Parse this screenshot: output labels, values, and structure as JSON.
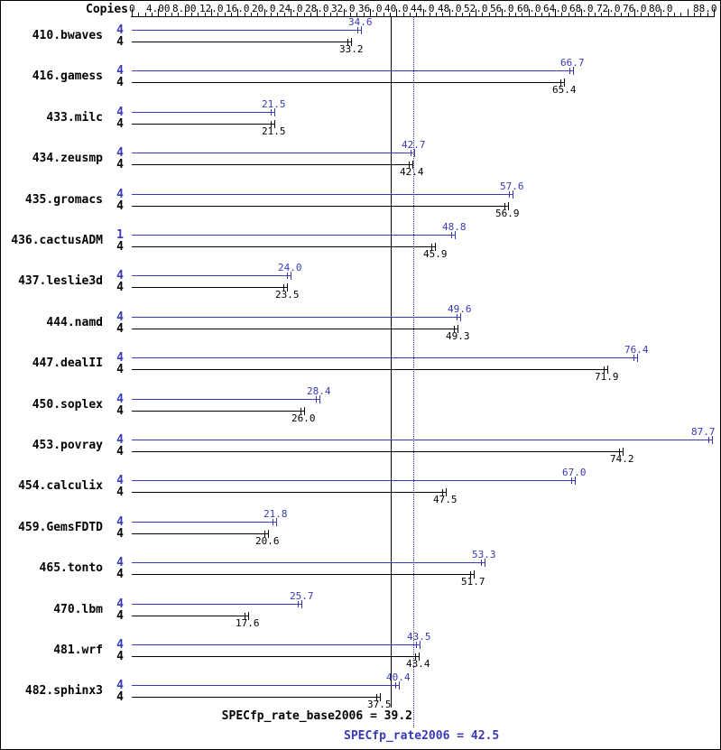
{
  "chart_data": {
    "type": "bar",
    "orientation": "horizontal",
    "copies_header": "Copies",
    "peak_color": "#3838b8",
    "base_color": "#000000",
    "axis": {
      "min": 0,
      "max": 88,
      "minor_step": 1,
      "major_step": 4,
      "position": "top",
      "tick_labels": [
        {
          "value": 0,
          "text": "0"
        },
        {
          "value": 4,
          "text": "4.00"
        },
        {
          "value": 8,
          "text": "8.00"
        },
        {
          "value": 12,
          "text": "12.0"
        },
        {
          "value": 16,
          "text": "16.0"
        },
        {
          "value": 20,
          "text": "20.0"
        },
        {
          "value": 24,
          "text": "24.0"
        },
        {
          "value": 28,
          "text": "28.0"
        },
        {
          "value": 32,
          "text": "32.0"
        },
        {
          "value": 36,
          "text": "36.0"
        },
        {
          "value": 40,
          "text": "40.0"
        },
        {
          "value": 44,
          "text": "44.0"
        },
        {
          "value": 48,
          "text": "48.0"
        },
        {
          "value": 52,
          "text": "52.0"
        },
        {
          "value": 56,
          "text": "56.0"
        },
        {
          "value": 60,
          "text": "60.0"
        },
        {
          "value": 64,
          "text": "64.0"
        },
        {
          "value": 68,
          "text": "68.0"
        },
        {
          "value": 72,
          "text": "72.0"
        },
        {
          "value": 76,
          "text": "76.0"
        },
        {
          "value": 80,
          "text": "80.0"
        },
        {
          "value": 88,
          "text": "88.0"
        }
      ]
    },
    "benchmarks": [
      {
        "name": "410.bwaves",
        "peak_copies": "4",
        "peak_value": 34.6,
        "peak_label": "34.6",
        "base_copies": "4",
        "base_value": 33.2,
        "base_label": "33.2"
      },
      {
        "name": "416.gamess",
        "peak_copies": "4",
        "peak_value": 66.7,
        "peak_label": "66.7",
        "base_copies": "4",
        "base_value": 65.4,
        "base_label": "65.4"
      },
      {
        "name": "433.milc",
        "peak_copies": "4",
        "peak_value": 21.5,
        "peak_label": "21.5",
        "base_copies": "4",
        "base_value": 21.5,
        "base_label": "21.5"
      },
      {
        "name": "434.zeusmp",
        "peak_copies": "4",
        "peak_value": 42.7,
        "peak_label": "42.7",
        "base_copies": "4",
        "base_value": 42.4,
        "base_label": "42.4"
      },
      {
        "name": "435.gromacs",
        "peak_copies": "4",
        "peak_value": 57.6,
        "peak_label": "57.6",
        "base_copies": "4",
        "base_value": 56.9,
        "base_label": "56.9"
      },
      {
        "name": "436.cactusADM",
        "peak_copies": "1",
        "peak_value": 48.8,
        "peak_label": "48.8",
        "base_copies": "4",
        "base_value": 45.9,
        "base_label": "45.9"
      },
      {
        "name": "437.leslie3d",
        "peak_copies": "4",
        "peak_value": 24.0,
        "peak_label": "24.0",
        "base_copies": "4",
        "base_value": 23.5,
        "base_label": "23.5"
      },
      {
        "name": "444.namd",
        "peak_copies": "4",
        "peak_value": 49.6,
        "peak_label": "49.6",
        "base_copies": "4",
        "base_value": 49.3,
        "base_label": "49.3"
      },
      {
        "name": "447.dealII",
        "peak_copies": "4",
        "peak_value": 76.4,
        "peak_label": "76.4",
        "base_copies": "4",
        "base_value": 71.9,
        "base_label": "71.9"
      },
      {
        "name": "450.soplex",
        "peak_copies": "4",
        "peak_value": 28.4,
        "peak_label": "28.4",
        "base_copies": "4",
        "base_value": 26.0,
        "base_label": "26.0"
      },
      {
        "name": "453.povray",
        "peak_copies": "4",
        "peak_value": 87.7,
        "peak_label": "87.7",
        "base_copies": "4",
        "base_value": 74.2,
        "base_label": "74.2"
      },
      {
        "name": "454.calculix",
        "peak_copies": "4",
        "peak_value": 67.0,
        "peak_label": "67.0",
        "base_copies": "4",
        "base_value": 47.5,
        "base_label": "47.5"
      },
      {
        "name": "459.GemsFDTD",
        "peak_copies": "4",
        "peak_value": 21.8,
        "peak_label": "21.8",
        "base_copies": "4",
        "base_value": 20.6,
        "base_label": "20.6"
      },
      {
        "name": "465.tonto",
        "peak_copies": "4",
        "peak_value": 53.3,
        "peak_label": "53.3",
        "base_copies": "4",
        "base_value": 51.7,
        "base_label": "51.7"
      },
      {
        "name": "470.lbm",
        "peak_copies": "4",
        "peak_value": 25.7,
        "peak_label": "25.7",
        "base_copies": "4",
        "base_value": 17.6,
        "base_label": "17.6"
      },
      {
        "name": "481.wrf",
        "peak_copies": "4",
        "peak_value": 43.5,
        "peak_label": "43.5",
        "base_copies": "4",
        "base_value": 43.4,
        "base_label": "43.4"
      },
      {
        "name": "482.sphinx3",
        "peak_copies": "4",
        "peak_value": 40.4,
        "peak_label": "40.4",
        "base_copies": "4",
        "base_value": 37.5,
        "base_label": "37.5"
      }
    ],
    "reference_lines": [
      {
        "kind": "base",
        "value": 39.2,
        "style": "solid",
        "color": "#000000",
        "label": "SPECfp_rate_base2006 = 39.2"
      },
      {
        "kind": "peak",
        "value": 42.5,
        "style": "dotted",
        "color": "#3838b8",
        "label": "SPECfp_rate2006 = 42.5"
      }
    ]
  }
}
